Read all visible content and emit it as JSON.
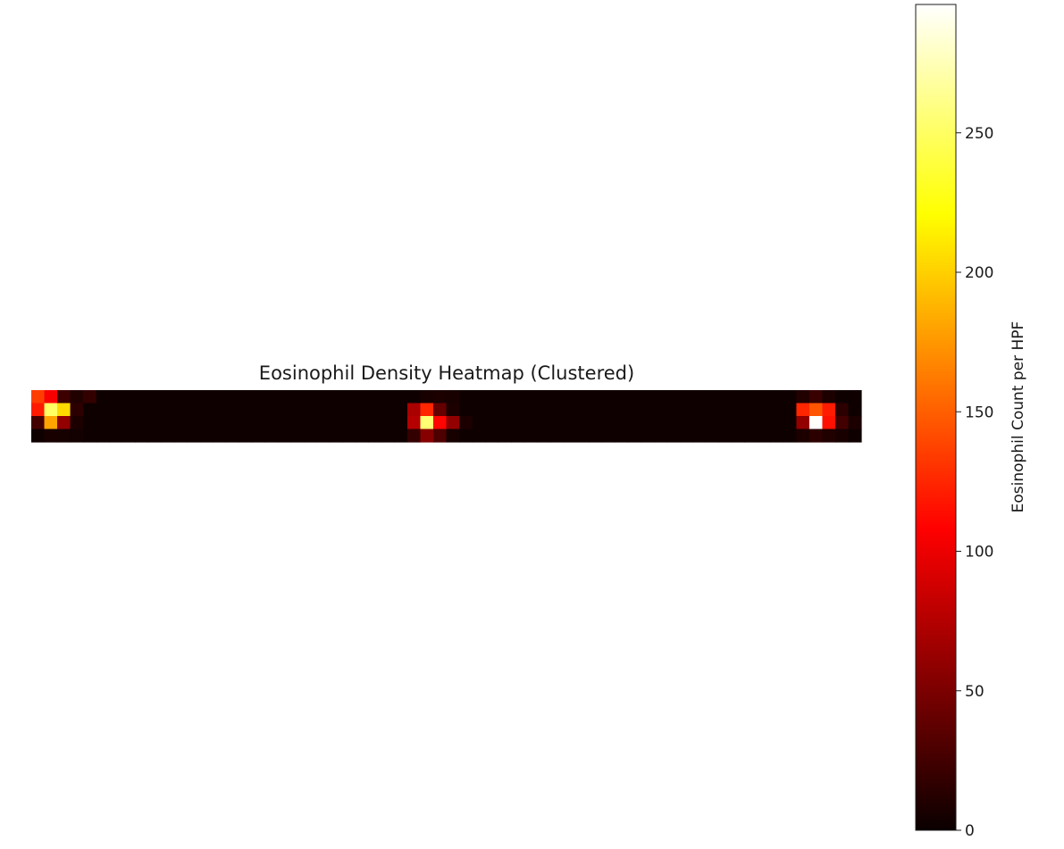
{
  "chart_data": {
    "type": "heatmap",
    "title": "Eosinophil Density Heatmap (Clustered)",
    "colormap": "hot",
    "rows": 4,
    "cols": 64,
    "grid": false,
    "axes_visible": false,
    "clusters": [
      {
        "cells": [
          {
            "r": 0,
            "c": 0,
            "v": 135
          },
          {
            "r": 0,
            "c": 1,
            "v": 105
          },
          {
            "r": 0,
            "c": 2,
            "v": 22
          },
          {
            "r": 0,
            "c": 3,
            "v": 10
          },
          {
            "r": 0,
            "c": 4,
            "v": 18
          },
          {
            "r": 1,
            "c": 0,
            "v": 120
          },
          {
            "r": 1,
            "c": 1,
            "v": 250
          },
          {
            "r": 1,
            "c": 2,
            "v": 205
          },
          {
            "r": 1,
            "c": 3,
            "v": 15
          },
          {
            "r": 2,
            "c": 0,
            "v": 25
          },
          {
            "r": 2,
            "c": 1,
            "v": 180
          },
          {
            "r": 2,
            "c": 2,
            "v": 60
          },
          {
            "r": 2,
            "c": 3,
            "v": 8
          },
          {
            "r": 3,
            "c": 1,
            "v": 6
          },
          {
            "r": 3,
            "c": 2,
            "v": 5
          },
          {
            "r": 3,
            "c": 3,
            "v": 4
          }
        ]
      },
      {
        "cells": [
          {
            "r": 0,
            "c": 30,
            "v": 6
          },
          {
            "r": 0,
            "c": 31,
            "v": 8
          },
          {
            "r": 0,
            "c": 32,
            "v": 6
          },
          {
            "r": 1,
            "c": 29,
            "v": 70
          },
          {
            "r": 1,
            "c": 30,
            "v": 125
          },
          {
            "r": 1,
            "c": 31,
            "v": 40
          },
          {
            "r": 1,
            "c": 32,
            "v": 8
          },
          {
            "r": 2,
            "c": 29,
            "v": 75
          },
          {
            "r": 2,
            "c": 30,
            "v": 255
          },
          {
            "r": 2,
            "c": 31,
            "v": 110
          },
          {
            "r": 2,
            "c": 32,
            "v": 60
          },
          {
            "r": 2,
            "c": 33,
            "v": 8
          },
          {
            "r": 3,
            "c": 29,
            "v": 18
          },
          {
            "r": 3,
            "c": 30,
            "v": 55
          },
          {
            "r": 3,
            "c": 31,
            "v": 30
          },
          {
            "r": 3,
            "c": 32,
            "v": 5
          }
        ]
      },
      {
        "cells": [
          {
            "r": 0,
            "c": 59,
            "v": 10
          },
          {
            "r": 0,
            "c": 60,
            "v": 20
          },
          {
            "r": 0,
            "c": 61,
            "v": 8
          },
          {
            "r": 1,
            "c": 59,
            "v": 125
          },
          {
            "r": 1,
            "c": 60,
            "v": 145
          },
          {
            "r": 1,
            "c": 61,
            "v": 120
          },
          {
            "r": 1,
            "c": 62,
            "v": 15
          },
          {
            "r": 2,
            "c": 59,
            "v": 60
          },
          {
            "r": 2,
            "c": 60,
            "v": 295
          },
          {
            "r": 2,
            "c": 61,
            "v": 115
          },
          {
            "r": 2,
            "c": 62,
            "v": 25
          },
          {
            "r": 2,
            "c": 63,
            "v": 8
          },
          {
            "r": 3,
            "c": 59,
            "v": 8
          },
          {
            "r": 3,
            "c": 60,
            "v": 15
          },
          {
            "r": 3,
            "c": 61,
            "v": 10
          },
          {
            "r": 3,
            "c": 62,
            "v": 6
          }
        ]
      }
    ],
    "background_value": 2,
    "colorbar": {
      "label": "Eosinophil Count per HPF",
      "vmin": 0,
      "vmax": 296,
      "ticks": [
        0,
        50,
        100,
        150,
        200,
        250
      ],
      "placement": "right"
    }
  }
}
